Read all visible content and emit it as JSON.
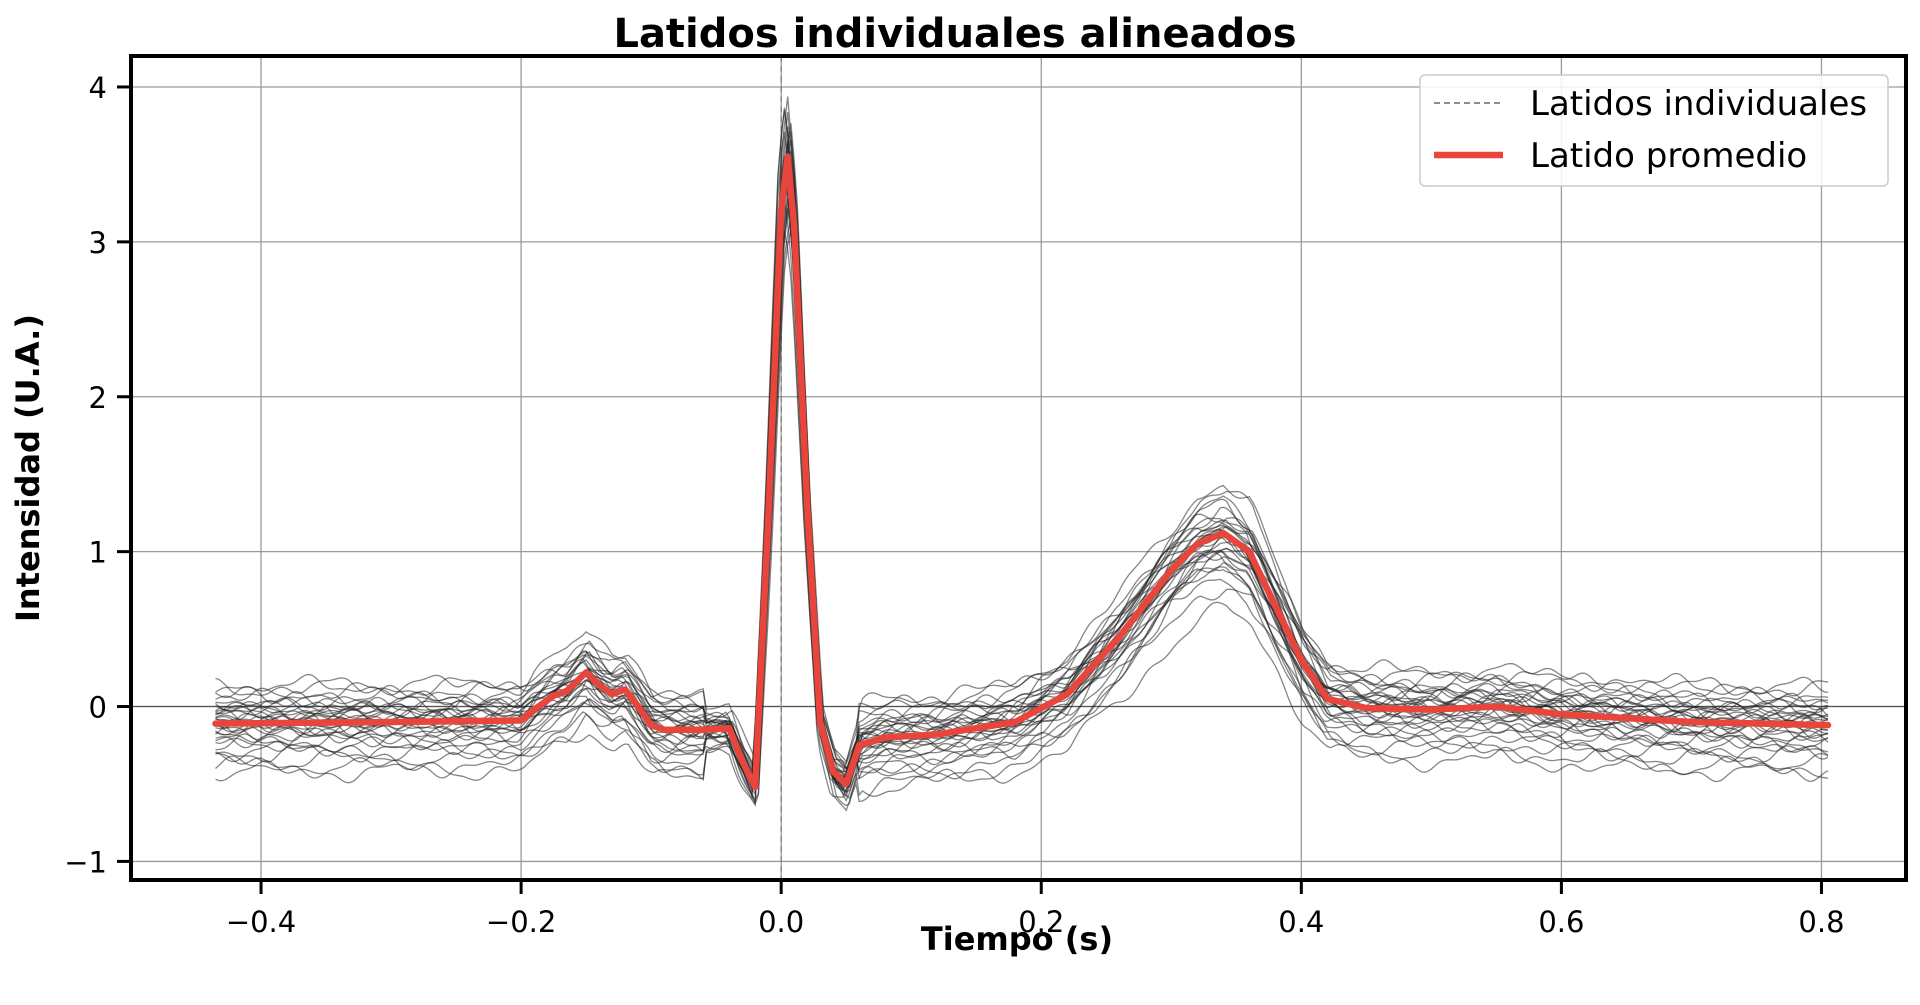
{
  "chart_data": {
    "type": "line",
    "title": "Latidos individuales alineados",
    "xlabel": "Tiempo (s)",
    "ylabel": "Intensidad (U.A.)",
    "xlim": [
      -0.5,
      0.865
    ],
    "ylim": [
      -1.12,
      4.2
    ],
    "grid": true,
    "legend_position": "top-right",
    "xticks": [
      -0.4,
      -0.2,
      0.0,
      0.2,
      0.4,
      0.6,
      0.8
    ],
    "xtick_labels": [
      "−0.4",
      "−0.2",
      "0.0",
      "0.2",
      "0.4",
      "0.6",
      "0.8"
    ],
    "yticks": [
      -1,
      0,
      1,
      2,
      3,
      4
    ],
    "ytick_labels": [
      "−1",
      "0",
      "1",
      "2",
      "3",
      "4"
    ],
    "reference_lines": {
      "vertical_x": 0.0,
      "horizontal_y": 0.0
    },
    "legend": [
      {
        "label": "Latidos individuales",
        "style": "dashed",
        "color": "#666666"
      },
      {
        "label": "Latido promedio",
        "style": "solid",
        "color": "#e8453c"
      }
    ],
    "colors": {
      "individual": "#222222",
      "average": "#e8453c",
      "grid": "#9a9a9a",
      "reference": "#808080"
    },
    "x_range": [
      -0.435,
      0.805
    ],
    "average_beat": {
      "name": "Latido promedio",
      "x": [
        -0.435,
        -0.3,
        -0.2,
        -0.19,
        -0.175,
        -0.165,
        -0.15,
        -0.14,
        -0.13,
        -0.12,
        -0.11,
        -0.1,
        -0.09,
        -0.06,
        -0.04,
        -0.03,
        -0.02,
        -0.01,
        0.0,
        0.005,
        0.01,
        0.02,
        0.03,
        0.04,
        0.05,
        0.06,
        0.08,
        0.12,
        0.18,
        0.22,
        0.26,
        0.3,
        0.32,
        0.34,
        0.36,
        0.38,
        0.4,
        0.42,
        0.45,
        0.5,
        0.55,
        0.6,
        0.7,
        0.805
      ],
      "y": [
        -0.11,
        -0.1,
        -0.09,
        -0.02,
        0.07,
        0.1,
        0.22,
        0.14,
        0.08,
        0.11,
        0.0,
        -0.12,
        -0.15,
        -0.15,
        -0.14,
        -0.35,
        -0.52,
        1.2,
        3.2,
        3.55,
        3.1,
        1.3,
        -0.1,
        -0.42,
        -0.5,
        -0.25,
        -0.2,
        -0.18,
        -0.1,
        0.08,
        0.45,
        0.88,
        1.05,
        1.12,
        1.0,
        0.65,
        0.3,
        0.05,
        -0.01,
        -0.02,
        0.0,
        -0.05,
        -0.1,
        -0.12
      ]
    },
    "individual_beats": {
      "name": "Latidos individuales",
      "count": 32,
      "offsets": [
        -0.33,
        -0.28,
        -0.24,
        -0.2,
        -0.17,
        -0.14,
        -0.12,
        -0.1,
        -0.08,
        -0.06,
        -0.05,
        -0.04,
        -0.03,
        -0.02,
        -0.01,
        0.0,
        0.01,
        0.02,
        0.03,
        0.04,
        0.05,
        0.06,
        0.07,
        0.08,
        0.09,
        0.1,
        0.12,
        0.14,
        0.16,
        0.18,
        0.21,
        0.24
      ],
      "scales": [
        0.9,
        1.05,
        0.95,
        1.1,
        1.0,
        0.88,
        1.08,
        0.97,
        1.02,
        0.93,
        1.06,
        0.99,
        1.04,
        0.91,
        1.09,
        1.0,
        0.96,
        1.03,
        0.89,
        1.07,
        0.98,
        1.01,
        0.94,
        1.05,
        0.92,
        1.1,
        0.97,
        1.03,
        0.9,
        1.06,
        0.95,
        1.0
      ]
    }
  }
}
